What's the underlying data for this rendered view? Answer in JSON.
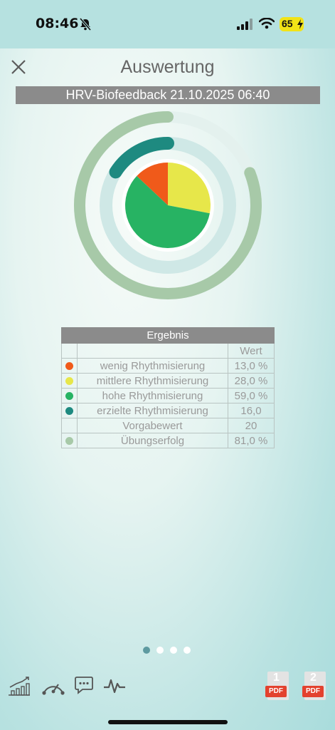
{
  "status_bar": {
    "time": "08:46",
    "battery": "65"
  },
  "header": {
    "title": "Auswertung",
    "session": "HRV-Biofeedback 21.10.2025 06:40"
  },
  "chart_data": {
    "type": "pie",
    "slices": [
      {
        "label": "wenig Rhythmisierung",
        "value": 13.0,
        "color": "#f05a1a"
      },
      {
        "label": "mittlere Rhythmisierung",
        "value": 28.0,
        "color": "#e7e74a"
      },
      {
        "label": "hohe Rhythmisierung",
        "value": 59.0,
        "color": "#27b363"
      }
    ],
    "rings": [
      {
        "label": "erzielte Rhythmisierung",
        "value": 16.0,
        "max": 20,
        "color": "#1e8a80"
      },
      {
        "label": "Übungserfolg",
        "value": 81.0,
        "max": 100,
        "color": "#a7c9a8"
      }
    ]
  },
  "results": {
    "title": "Ergebnis",
    "value_header": "Wert",
    "rows": [
      {
        "label": "wenig Rhythmisierung",
        "value": "13,0 %",
        "color": "#f05a1a"
      },
      {
        "label": "mittlere Rhythmisierung",
        "value": "28,0 %",
        "color": "#e7e74a"
      },
      {
        "label": "hohe Rhythmisierung",
        "value": "59,0 %",
        "color": "#27b363"
      },
      {
        "label": "erzielte Rhythmisierung",
        "value": "16,0",
        "color": "#1e8a80"
      },
      {
        "label": "Vorgabewert",
        "value": "20",
        "color": ""
      },
      {
        "label": "Übungserfolg",
        "value": "81,0 %",
        "color": "#a7c9a8"
      }
    ]
  },
  "pagination": {
    "pages": 4,
    "active": 0
  },
  "toolbar": {
    "icons": [
      "trend-chart-icon",
      "gauge-icon",
      "chat-icon",
      "pulse-icon"
    ],
    "pdf_1_num": "1",
    "pdf_2_num": "2",
    "pdf_label": "PDF"
  }
}
